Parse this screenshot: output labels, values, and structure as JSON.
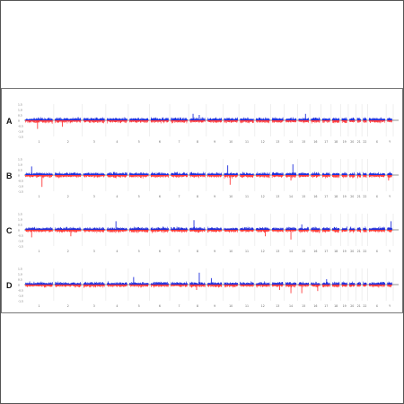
{
  "colors": {
    "background": "#ffffff",
    "frame": "#555555",
    "gain": "#1f2fdc",
    "loss": "#ff3c3c",
    "grid": "#d7d7d7",
    "centerline": "#222222",
    "axis_text": "#666666",
    "panel_label": "#111111"
  },
  "chart_data": [
    {
      "type": "scatter",
      "panel": "A",
      "ylim": [
        -1.5,
        1.5
      ],
      "yticks": [
        "1.5",
        "1.0",
        "0.5",
        "0",
        "-0.5",
        "-1.0",
        "-1.5"
      ],
      "chromosomes": [
        "1",
        "2",
        "3",
        "4",
        "5",
        "6",
        "7",
        "8",
        "9",
        "10",
        "11",
        "12",
        "13",
        "14",
        "15",
        "16",
        "17",
        "18",
        "19",
        "20",
        "21",
        "22",
        "X",
        "Y"
      ],
      "chrom_labels": [
        "1",
        "2",
        "3",
        "4",
        "5",
        "6",
        "7",
        "8",
        "9",
        "10",
        "11",
        "12",
        "13",
        "14",
        "15",
        "16",
        "17",
        "18",
        "19",
        "20",
        "21",
        "22",
        "X",
        "Y"
      ],
      "events": [
        {
          "chromosome": "8",
          "log2_ratio": 0.6
        },
        {
          "chromosome": "8",
          "log2_ratio": 0.5
        },
        {
          "chromosome": "1",
          "log2_ratio": -0.8
        },
        {
          "chromosome": "2",
          "log2_ratio": -0.6
        },
        {
          "chromosome": "15",
          "log2_ratio": 0.6
        }
      ]
    },
    {
      "type": "scatter",
      "panel": "B",
      "ylim": [
        -1.5,
        1.5
      ],
      "yticks": [
        "1.5",
        "1.0",
        "0.5",
        "0",
        "-0.5",
        "-1.0",
        "-1.5"
      ],
      "chromosomes": [
        "1",
        "2",
        "3",
        "4",
        "5",
        "6",
        "7",
        "8",
        "9",
        "10",
        "11",
        "12",
        "13",
        "14",
        "15",
        "16",
        "17",
        "18",
        "19",
        "20",
        "21",
        "22",
        "X",
        "Y"
      ],
      "chrom_labels": [
        "1",
        "2",
        "3",
        "4",
        "5",
        "6",
        "7",
        "8",
        "9",
        "10",
        "11",
        "12",
        "13",
        "14",
        "15",
        "16",
        "17",
        "18",
        "19",
        "20",
        "21",
        "22",
        "X",
        "Y"
      ],
      "events": [
        {
          "chromosome": "1",
          "log2_ratio": 0.8
        },
        {
          "chromosome": "1",
          "log2_ratio": -1.1
        },
        {
          "chromosome": "10",
          "log2_ratio": -0.9
        },
        {
          "chromosome": "10",
          "log2_ratio": 0.9
        },
        {
          "chromosome": "14",
          "log2_ratio": 1.0
        },
        {
          "chromosome": "14",
          "log2_ratio": -0.5
        },
        {
          "chromosome": "Y",
          "log2_ratio": -0.5
        }
      ]
    },
    {
      "type": "scatter",
      "panel": "C",
      "ylim": [
        -1.5,
        1.5
      ],
      "yticks": [
        "1.5",
        "1.0",
        "0.5",
        "0",
        "-0.5",
        "-1.0",
        "-1.5"
      ],
      "chromosomes": [
        "1",
        "2",
        "3",
        "4",
        "5",
        "6",
        "7",
        "8",
        "9",
        "10",
        "11",
        "12",
        "13",
        "14",
        "15",
        "16",
        "17",
        "18",
        "19",
        "20",
        "21",
        "22",
        "X",
        "Y"
      ],
      "chrom_labels": [
        "1",
        "2",
        "3",
        "4",
        "5",
        "6",
        "7",
        "8",
        "9",
        "10",
        "11",
        "12",
        "13",
        "14",
        "15",
        "16",
        "17",
        "18",
        "19",
        "20",
        "21",
        "22",
        "X",
        "Y"
      ],
      "events": [
        {
          "chromosome": "1",
          "log2_ratio": -0.7
        },
        {
          "chromosome": "2",
          "log2_ratio": -0.6
        },
        {
          "chromosome": "4",
          "log2_ratio": 0.8
        },
        {
          "chromosome": "8",
          "log2_ratio": 0.9
        },
        {
          "chromosome": "12",
          "log2_ratio": -0.6
        },
        {
          "chromosome": "14",
          "log2_ratio": -0.9
        },
        {
          "chromosome": "15",
          "log2_ratio": 0.5
        },
        {
          "chromosome": "Y",
          "log2_ratio": 0.8
        }
      ]
    },
    {
      "type": "scatter",
      "panel": "D",
      "ylim": [
        -1.5,
        1.5
      ],
      "yticks": [
        "1.5",
        "1.0",
        "0.5",
        "0",
        "-0.5",
        "-1.0",
        "-1.5"
      ],
      "chromosomes": [
        "1",
        "2",
        "3",
        "4",
        "5",
        "6",
        "7",
        "8",
        "9",
        "10",
        "11",
        "12",
        "13",
        "14",
        "15",
        "16",
        "17",
        "18",
        "19",
        "20",
        "21",
        "22",
        "X",
        "Y"
      ],
      "chrom_labels": [
        "1",
        "2",
        "3",
        "4",
        "5",
        "6",
        "7",
        "8",
        "9",
        "10",
        "11",
        "12",
        "13",
        "14",
        "15",
        "16",
        "17",
        "18",
        "19",
        "20",
        "21",
        "22",
        "X",
        "Y"
      ],
      "events": [
        {
          "chromosome": "5",
          "log2_ratio": 0.7
        },
        {
          "chromosome": "8",
          "log2_ratio": 1.1
        },
        {
          "chromosome": "8",
          "log2_ratio": -0.5
        },
        {
          "chromosome": "9",
          "log2_ratio": 0.6
        },
        {
          "chromosome": "13",
          "log2_ratio": -0.5
        },
        {
          "chromosome": "14",
          "log2_ratio": -0.8
        },
        {
          "chromosome": "15",
          "log2_ratio": -0.8
        },
        {
          "chromosome": "16",
          "log2_ratio": -0.6
        },
        {
          "chromosome": "17",
          "log2_ratio": 0.5
        }
      ]
    }
  ]
}
